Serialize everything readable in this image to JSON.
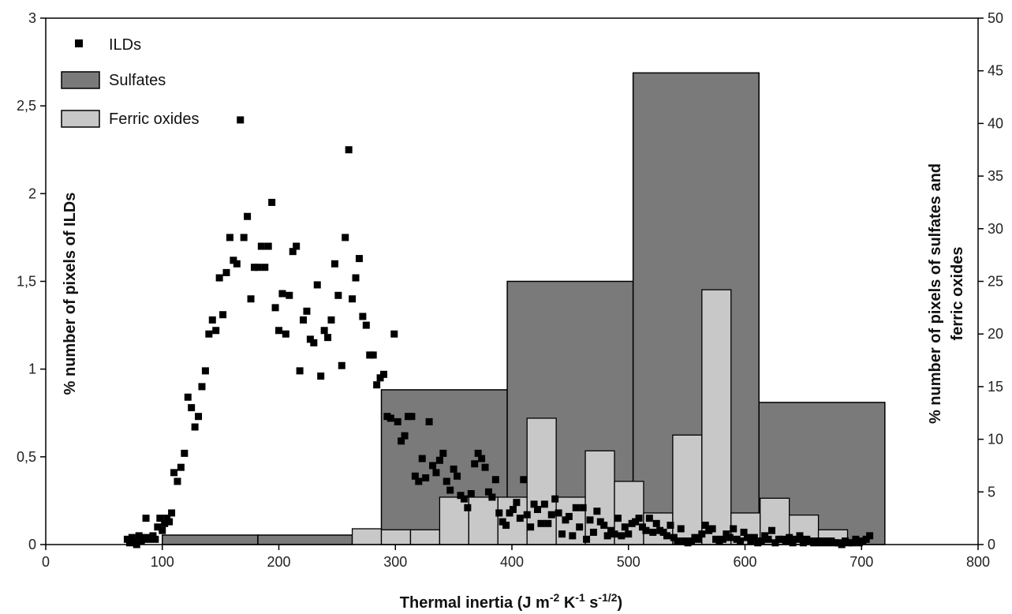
{
  "chart_data": {
    "type": "bar",
    "xlabel": {
      "main": "Thermal inertia (J m",
      "sup1": "-2",
      "mid1": " K",
      "sup2": "-1",
      "mid2": " s",
      "sup3": "-1/2",
      "end": ")"
    },
    "ylabel_left": "% number of pixels of ILDs",
    "ylabel_right": [
      "% number of pixels of sulfates and",
      "ferric oxides"
    ],
    "xlim": [
      0,
      800
    ],
    "ylim_left": [
      0,
      3
    ],
    "ylim_right": [
      0,
      50
    ],
    "x_ticks": [
      0,
      100,
      200,
      300,
      400,
      500,
      600,
      700,
      800
    ],
    "y_left_ticks": [
      0,
      0.5,
      1,
      1.5,
      2,
      2.5,
      3
    ],
    "y_left_tick_labels": [
      "0",
      "0,5",
      "1",
      "1,5",
      "2",
      "2,5",
      "3"
    ],
    "y_right_ticks": [
      0,
      5,
      10,
      15,
      20,
      25,
      30,
      35,
      40,
      45,
      50
    ],
    "grid": false,
    "legend": {
      "position": "top-left",
      "entries": [
        {
          "label": "ILDs",
          "kind": "marker",
          "color": "#000000"
        },
        {
          "label": "Sulfates",
          "kind": "patch",
          "color": "#7a7a7a"
        },
        {
          "label": "Ferric oxides",
          "kind": "patch",
          "color": "#c8c8c8"
        }
      ]
    },
    "colors": {
      "sulfates": "#7a7a7a",
      "ferric": "#c8c8c8",
      "ilds": "#000000",
      "edge": "#000000"
    },
    "series": [
      {
        "name": "Sulfates",
        "axis": "right",
        "bins": [
          {
            "x0": 100,
            "x1": 182,
            "value": 0.9
          },
          {
            "x0": 182,
            "x1": 263,
            "value": 0.9
          },
          {
            "x0": 288,
            "x1": 396,
            "value": 14.7
          },
          {
            "x0": 396,
            "x1": 504,
            "value": 25.0
          },
          {
            "x0": 504,
            "x1": 612,
            "value": 44.8
          },
          {
            "x0": 612,
            "x1": 720,
            "value": 13.5
          }
        ]
      },
      {
        "name": "Ferric oxides",
        "axis": "right",
        "bins": [
          {
            "x0": 263,
            "x1": 288,
            "value": 1.5
          },
          {
            "x0": 288,
            "x1": 313,
            "value": 1.4
          },
          {
            "x0": 313,
            "x1": 338,
            "value": 1.4
          },
          {
            "x0": 338,
            "x1": 363,
            "value": 4.5
          },
          {
            "x0": 363,
            "x1": 388,
            "value": 4.5
          },
          {
            "x0": 388,
            "x1": 413,
            "value": 4.5
          },
          {
            "x0": 413,
            "x1": 438,
            "value": 12.0
          },
          {
            "x0": 438,
            "x1": 463,
            "value": 4.5
          },
          {
            "x0": 463,
            "x1": 488,
            "value": 8.9
          },
          {
            "x0": 488,
            "x1": 513,
            "value": 6.0
          },
          {
            "x0": 513,
            "x1": 538,
            "value": 3.0
          },
          {
            "x0": 538,
            "x1": 563,
            "value": 10.4
          },
          {
            "x0": 563,
            "x1": 588,
            "value": 24.2
          },
          {
            "x0": 588,
            "x1": 613,
            "value": 3.0
          },
          {
            "x0": 613,
            "x1": 638,
            "value": 4.4
          },
          {
            "x0": 638,
            "x1": 663,
            "value": 2.8
          },
          {
            "x0": 663,
            "x1": 688,
            "value": 1.4
          }
        ]
      },
      {
        "name": "ILDs",
        "axis": "left",
        "points": [
          [
            70,
            0.03
          ],
          [
            72,
            0.01
          ],
          [
            74,
            0.04
          ],
          [
            76,
            0.02
          ],
          [
            78,
            0.0
          ],
          [
            80,
            0.05
          ],
          [
            82,
            0.02
          ],
          [
            84,
            0.04
          ],
          [
            86,
            0.15
          ],
          [
            88,
            0.03
          ],
          [
            90,
            0.04
          ],
          [
            92,
            0.05
          ],
          [
            94,
            0.03
          ],
          [
            96,
            0.1
          ],
          [
            98,
            0.15
          ],
          [
            100,
            0.08
          ],
          [
            102,
            0.12
          ],
          [
            104,
            0.15
          ],
          [
            106,
            0.13
          ],
          [
            108,
            0.18
          ],
          [
            110,
            0.41
          ],
          [
            113,
            0.36
          ],
          [
            116,
            0.44
          ],
          [
            119,
            0.52
          ],
          [
            122,
            0.84
          ],
          [
            125,
            0.78
          ],
          [
            128,
            0.67
          ],
          [
            131,
            0.73
          ],
          [
            134,
            0.9
          ],
          [
            137,
            0.99
          ],
          [
            140,
            1.2
          ],
          [
            143,
            1.28
          ],
          [
            146,
            1.22
          ],
          [
            149,
            1.52
          ],
          [
            152,
            1.31
          ],
          [
            155,
            1.55
          ],
          [
            158,
            1.75
          ],
          [
            161,
            1.62
          ],
          [
            164,
            1.6
          ],
          [
            167,
            2.42
          ],
          [
            170,
            1.75
          ],
          [
            173,
            1.87
          ],
          [
            176,
            1.4
          ],
          [
            179,
            1.58
          ],
          [
            182,
            1.58
          ],
          [
            185,
            1.7
          ],
          [
            188,
            1.58
          ],
          [
            191,
            1.7
          ],
          [
            194,
            1.95
          ],
          [
            197,
            1.35
          ],
          [
            200,
            1.22
          ],
          [
            203,
            1.43
          ],
          [
            206,
            1.2
          ],
          [
            209,
            1.42
          ],
          [
            212,
            1.67
          ],
          [
            215,
            1.7
          ],
          [
            218,
            0.99
          ],
          [
            221,
            1.28
          ],
          [
            224,
            1.33
          ],
          [
            227,
            1.17
          ],
          [
            230,
            1.15
          ],
          [
            233,
            1.48
          ],
          [
            236,
            0.96
          ],
          [
            239,
            1.22
          ],
          [
            242,
            1.18
          ],
          [
            245,
            1.28
          ],
          [
            248,
            1.6
          ],
          [
            251,
            1.42
          ],
          [
            254,
            1.02
          ],
          [
            257,
            1.75
          ],
          [
            260,
            2.25
          ],
          [
            263,
            1.4
          ],
          [
            266,
            1.52
          ],
          [
            269,
            1.63
          ],
          [
            272,
            1.3
          ],
          [
            275,
            1.25
          ],
          [
            278,
            1.08
          ],
          [
            281,
            1.08
          ],
          [
            284,
            0.91
          ],
          [
            287,
            0.95
          ],
          [
            290,
            0.97
          ],
          [
            293,
            0.73
          ],
          [
            296,
            0.72
          ],
          [
            299,
            1.2
          ],
          [
            302,
            0.7
          ],
          [
            305,
            0.59
          ],
          [
            308,
            0.62
          ],
          [
            311,
            0.73
          ],
          [
            314,
            0.73
          ],
          [
            317,
            0.39
          ],
          [
            320,
            0.36
          ],
          [
            323,
            0.49
          ],
          [
            326,
            0.38
          ],
          [
            329,
            0.7
          ],
          [
            332,
            0.45
          ],
          [
            335,
            0.41
          ],
          [
            338,
            0.48
          ],
          [
            341,
            0.52
          ],
          [
            344,
            0.36
          ],
          [
            347,
            0.31
          ],
          [
            350,
            0.43
          ],
          [
            353,
            0.39
          ],
          [
            356,
            0.28
          ],
          [
            359,
            0.26
          ],
          [
            362,
            0.21
          ],
          [
            365,
            0.29
          ],
          [
            368,
            0.46
          ],
          [
            371,
            0.52
          ],
          [
            374,
            0.49
          ],
          [
            377,
            0.44
          ],
          [
            380,
            0.3
          ],
          [
            383,
            0.27
          ],
          [
            386,
            0.37
          ],
          [
            389,
            0.18
          ],
          [
            392,
            0.13
          ],
          [
            395,
            0.11
          ],
          [
            398,
            0.18
          ],
          [
            401,
            0.2
          ],
          [
            404,
            0.24
          ],
          [
            407,
            0.15
          ],
          [
            410,
            0.37
          ],
          [
            413,
            0.17
          ],
          [
            416,
            0.1
          ],
          [
            419,
            0.23
          ],
          [
            422,
            0.2
          ],
          [
            425,
            0.12
          ],
          [
            428,
            0.23
          ],
          [
            431,
            0.12
          ],
          [
            434,
            0.17
          ],
          [
            437,
            0.26
          ],
          [
            440,
            0.18
          ],
          [
            443,
            0.06
          ],
          [
            446,
            0.14
          ],
          [
            449,
            0.16
          ],
          [
            452,
            0.05
          ],
          [
            455,
            0.21
          ],
          [
            458,
            0.1
          ],
          [
            461,
            0.21
          ],
          [
            464,
            0.03
          ],
          [
            467,
            0.14
          ],
          [
            470,
            0.07
          ],
          [
            473,
            0.19
          ],
          [
            476,
            0.13
          ],
          [
            479,
            0.11
          ],
          [
            482,
            0.05
          ],
          [
            485,
            0.08
          ],
          [
            488,
            0.06
          ],
          [
            491,
            0.15
          ],
          [
            494,
            0.05
          ],
          [
            497,
            0.1
          ],
          [
            500,
            0.06
          ],
          [
            503,
            0.12
          ],
          [
            506,
            0.13
          ],
          [
            509,
            0.15
          ],
          [
            512,
            0.1
          ],
          [
            515,
            0.08
          ],
          [
            518,
            0.15
          ],
          [
            521,
            0.07
          ],
          [
            524,
            0.12
          ],
          [
            527,
            0.08
          ],
          [
            530,
            0.07
          ],
          [
            533,
            0.05
          ],
          [
            536,
            0.11
          ],
          [
            539,
            0.04
          ],
          [
            542,
            0.02
          ],
          [
            545,
            0.09
          ],
          [
            548,
            0.02
          ],
          [
            551,
            0.01
          ],
          [
            554,
            0.02
          ],
          [
            557,
            0.04
          ],
          [
            560,
            0.03
          ],
          [
            563,
            0.06
          ],
          [
            566,
            0.11
          ],
          [
            569,
            0.08
          ],
          [
            572,
            0.09
          ],
          [
            575,
            0.03
          ],
          [
            578,
            0.02
          ],
          [
            581,
            0.03
          ],
          [
            584,
            0.06
          ],
          [
            587,
            0.04
          ],
          [
            590,
            0.09
          ],
          [
            593,
            0.03
          ],
          [
            596,
            0.02
          ],
          [
            599,
            0.07
          ],
          [
            602,
            0.04
          ],
          [
            605,
            0.02
          ],
          [
            608,
            0.04
          ],
          [
            611,
            0.01
          ],
          [
            614,
            0.02
          ],
          [
            617,
            0.05
          ],
          [
            620,
            0.03
          ],
          [
            623,
            0.08
          ],
          [
            626,
            0.01
          ],
          [
            629,
            0.03
          ],
          [
            632,
            0.03
          ],
          [
            635,
            0.02
          ],
          [
            638,
            0.04
          ],
          [
            641,
            0.01
          ],
          [
            644,
            0.03
          ],
          [
            647,
            0.05
          ],
          [
            650,
            0.01
          ],
          [
            653,
            0.03
          ],
          [
            656,
            0.02
          ],
          [
            659,
            0.01
          ],
          [
            662,
            0.02
          ],
          [
            665,
            0.01
          ],
          [
            668,
            0.02
          ],
          [
            671,
            0.01
          ],
          [
            674,
            0.02
          ],
          [
            677,
            0.01
          ],
          [
            680,
            0.01
          ],
          [
            683,
            0.0
          ],
          [
            686,
            0.02
          ],
          [
            689,
            0.01
          ],
          [
            692,
            0.01
          ],
          [
            695,
            0.03
          ],
          [
            698,
            0.01
          ],
          [
            701,
            0.02
          ],
          [
            704,
            0.03
          ],
          [
            707,
            0.05
          ]
        ]
      }
    ]
  }
}
